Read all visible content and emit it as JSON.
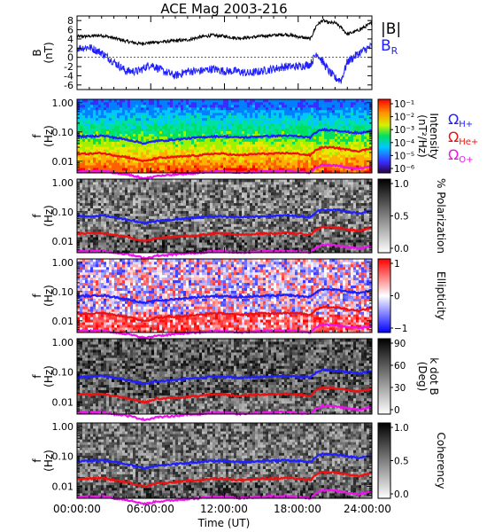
{
  "title": "ACE Mag 2003-216",
  "xlabel": "Time (UT)",
  "x_ticks": [
    "00:00:00",
    "06:00:00",
    "12:00:00",
    "18:00:00",
    "24:00:00"
  ],
  "legend_top": [
    {
      "text": "|B|",
      "color": "#000000"
    },
    {
      "text": "B",
      "sub": "R",
      "color": "#1f1fff"
    }
  ],
  "legend_freq": [
    {
      "text": "Ω",
      "sub": "H+",
      "color": "#1f1fff"
    },
    {
      "text": "Ω",
      "sub": "He+",
      "color": "#ee1111"
    },
    {
      "text": "Ω",
      "sub": "O+",
      "color": "#ee11ee"
    }
  ],
  "colors": {
    "btotal": "#000000",
    "br": "#1f1fff",
    "gyro_h": "#1f1fff",
    "gyro_he": "#ee1111",
    "gyro_o": "#ee11ee"
  },
  "chart_data": [
    {
      "type": "line",
      "ylabel": "B\n(nT)",
      "ylim": [
        -7,
        9
      ],
      "y_ticks": [
        "-6",
        "-4",
        "-2",
        "0",
        "2",
        "4",
        "6",
        "8"
      ],
      "x_range_hours": [
        0,
        24
      ],
      "series": [
        {
          "name": "|B|",
          "x": [
            0,
            1,
            2,
            3,
            4,
            5,
            6,
            7,
            8,
            9,
            10,
            11,
            12,
            13,
            14,
            15,
            16,
            17,
            18,
            19,
            19.5,
            20,
            20.5,
            21,
            21.5,
            22,
            23,
            24
          ],
          "values": [
            4.5,
            4.6,
            4.8,
            4.2,
            3.5,
            3.0,
            3.2,
            3.4,
            3.6,
            3.8,
            4.4,
            4.8,
            4.6,
            4.2,
            4.3,
            4.6,
            4.8,
            5.0,
            4.5,
            4.0,
            7.0,
            8.0,
            7.5,
            7.5,
            6.5,
            5.0,
            6.0,
            7.5
          ]
        },
        {
          "name": "B_R",
          "x": [
            0,
            1,
            2,
            3,
            4,
            5,
            6,
            7,
            8,
            9,
            10,
            11,
            12,
            13,
            14,
            15,
            16,
            17,
            18,
            19,
            19.5,
            20,
            20.5,
            21,
            21.5,
            22,
            23,
            24
          ],
          "values": [
            2.0,
            2.2,
            1.0,
            -1.0,
            -3.0,
            -3.0,
            -1.5,
            -3.0,
            -4.0,
            -3.0,
            -3.0,
            -2.5,
            -3.0,
            -3.0,
            -3.5,
            -3.0,
            -2.5,
            -2.0,
            -2.0,
            -1.5,
            1.0,
            -1.0,
            -3.0,
            -4.5,
            -5.0,
            -1.0,
            1.0,
            2.5
          ]
        }
      ]
    },
    {
      "type": "heatmap",
      "quantity": "Intensity",
      "ylabel": "f\n(Hz)",
      "y_scale": "log",
      "ylim": [
        0.004,
        1.3
      ],
      "y_ticks": [
        "1.00",
        "0.10",
        "0.01"
      ],
      "colorbar_label": "Intensity\n(nT²/Hz)",
      "colorbar_ticks": [
        "10⁻¹",
        "10⁻²",
        "10⁻³",
        "10⁻⁴",
        "10⁻⁵",
        "10⁻⁶"
      ],
      "colorbar_scale": "rainbow"
    },
    {
      "type": "heatmap",
      "quantity": "% Polarization",
      "ylabel": "f\n(Hz)",
      "y_scale": "log",
      "ylim": [
        0.004,
        1.3
      ],
      "y_ticks": [
        "1.00",
        "0.10",
        "0.01"
      ],
      "colorbar_label": "% Polarization",
      "colorbar_ticks": [
        "1.0",
        "0.5",
        "0.0"
      ],
      "colorbar_scale": "gray"
    },
    {
      "type": "heatmap",
      "quantity": "Ellipticity",
      "ylabel": "f\n(Hz)",
      "y_scale": "log",
      "ylim": [
        0.004,
        1.3
      ],
      "y_ticks": [
        "1.00",
        "0.10",
        "0.01"
      ],
      "colorbar_label": "Ellipticity",
      "colorbar_ticks": [
        "1",
        "0",
        "−1"
      ],
      "colorbar_scale": "bwr"
    },
    {
      "type": "heatmap",
      "quantity": "k dot B",
      "ylabel": "f\n(Hz)",
      "y_scale": "log",
      "ylim": [
        0.004,
        1.3
      ],
      "y_ticks": [
        "1.00",
        "0.10",
        "0.01"
      ],
      "colorbar_label": "k dot B\n(Deg)",
      "colorbar_ticks": [
        "90",
        "60",
        "30",
        "0"
      ],
      "colorbar_scale": "gray"
    },
    {
      "type": "heatmap",
      "quantity": "Coherency",
      "ylabel": "f\n(Hz)",
      "y_scale": "log",
      "ylim": [
        0.004,
        1.3
      ],
      "y_ticks": [
        "1.00",
        "0.10",
        "0.01"
      ],
      "colorbar_label": "Coherency",
      "colorbar_ticks": [
        "1.0",
        "0.5",
        "0.0"
      ],
      "colorbar_scale": "gray"
    }
  ],
  "gyrofrequency_lines_hz": {
    "x_hours": [
      0,
      1,
      2,
      3,
      4,
      5,
      5.5,
      6,
      6.5,
      7,
      8,
      9,
      10,
      11,
      12,
      13,
      14,
      15,
      16,
      17,
      18,
      19,
      19.5,
      20,
      21,
      22,
      23,
      24
    ],
    "H+": [
      0.07,
      0.07,
      0.075,
      0.065,
      0.055,
      0.045,
      0.04,
      0.045,
      0.05,
      0.05,
      0.055,
      0.06,
      0.065,
      0.07,
      0.07,
      0.065,
      0.066,
      0.07,
      0.072,
      0.075,
      0.07,
      0.065,
      0.1,
      0.12,
      0.115,
      0.1,
      0.09,
      0.11
    ],
    "He+": [
      0.018,
      0.018,
      0.019,
      0.016,
      0.014,
      0.011,
      0.01,
      0.011,
      0.013,
      0.013,
      0.014,
      0.015,
      0.016,
      0.018,
      0.018,
      0.016,
      0.017,
      0.018,
      0.018,
      0.019,
      0.018,
      0.016,
      0.025,
      0.03,
      0.029,
      0.025,
      0.022,
      0.028
    ],
    "O+": [
      0.0045,
      0.0045,
      0.0048,
      0.004,
      0.0036,
      0.0029,
      0.0026,
      0.0028,
      0.0032,
      0.0032,
      0.0035,
      0.0038,
      0.004,
      0.0045,
      0.0045,
      0.004,
      0.0042,
      0.0045,
      0.0046,
      0.0047,
      0.0045,
      0.004,
      0.0062,
      0.0075,
      0.0072,
      0.0062,
      0.0055,
      0.007
    ]
  }
}
